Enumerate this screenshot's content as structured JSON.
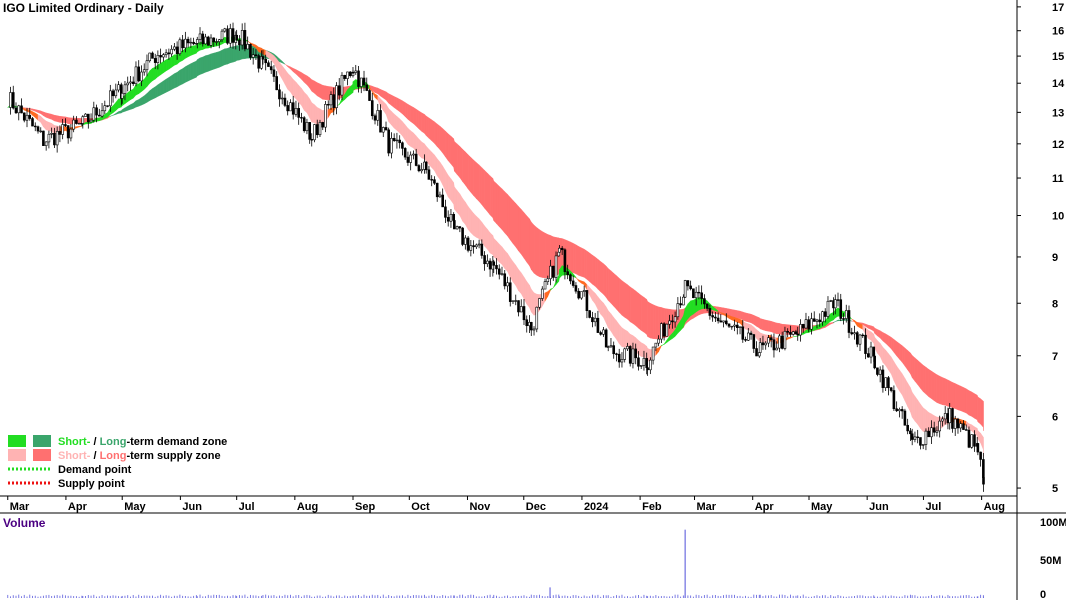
{
  "chart_data": {
    "type": "candlestick",
    "title": "IGO Limited Ordinary - Daily",
    "x_ticks": [
      "Mar",
      "Apr",
      "May",
      "Jun",
      "Jul",
      "Aug",
      "Sep",
      "Oct",
      "Nov",
      "Dec",
      "2024",
      "Feb",
      "Mar",
      "Apr",
      "May",
      "Jun",
      "Jul",
      "Aug"
    ],
    "y_ticks": [
      5,
      6,
      7,
      8,
      9,
      10,
      11,
      12,
      13,
      14,
      15,
      16,
      17
    ],
    "y_scale": "log",
    "ylim": [
      4.9,
      17.3
    ],
    "price_series_approx": [
      {
        "date": "2023-03",
        "close": 13.5
      },
      {
        "date": "2023-03-20",
        "close": 12.1
      },
      {
        "date": "2023-04-10",
        "close": 12.6
      },
      {
        "date": "2023-05-01",
        "close": 13.8
      },
      {
        "date": "2023-05-20",
        "close": 15.1
      },
      {
        "date": "2023-06-10",
        "close": 15.5
      },
      {
        "date": "2023-07-01",
        "close": 15.9
      },
      {
        "date": "2023-07-15",
        "close": 14.6
      },
      {
        "date": "2023-08-10",
        "close": 12.2
      },
      {
        "date": "2023-09-01",
        "close": 14.6
      },
      {
        "date": "2023-09-20",
        "close": 12.0
      },
      {
        "date": "2023-10-10",
        "close": 11.2
      },
      {
        "date": "2023-10-25",
        "close": 9.6
      },
      {
        "date": "2023-11-15",
        "close": 8.8
      },
      {
        "date": "2023-12-05",
        "close": 7.5
      },
      {
        "date": "2023-12-20",
        "close": 9.1
      },
      {
        "date": "2024-01-15",
        "close": 7.1
      },
      {
        "date": "2024-02-05",
        "close": 6.9
      },
      {
        "date": "2024-02-25",
        "close": 8.3
      },
      {
        "date": "2024-03-15",
        "close": 7.6
      },
      {
        "date": "2024-04-05",
        "close": 7.1
      },
      {
        "date": "2024-04-25",
        "close": 7.4
      },
      {
        "date": "2024-05-15",
        "close": 8.0
      },
      {
        "date": "2024-06-05",
        "close": 6.9
      },
      {
        "date": "2024-06-25",
        "close": 5.6
      },
      {
        "date": "2024-07-15",
        "close": 6.0
      },
      {
        "date": "2024-07-30",
        "close": 5.5
      },
      {
        "date": "2024-08-02",
        "close": 5.05
      }
    ],
    "short_term_zone_color": {
      "demand": "#22dd22",
      "supply": "#ffb3b3",
      "transition": "#ff6a22"
    },
    "long_term_zone_color": {
      "demand": "#3aa56b",
      "supply": "#ff7070"
    },
    "legend": {
      "placement": "bottom-left",
      "items": [
        {
          "parts": [
            {
              "text": "Short-",
              "color": "#22dd22"
            },
            {
              "text": " / ",
              "color": "#000000"
            },
            {
              "text": "Long",
              "color": "#3aa56b"
            },
            {
              "text": "-term demand zone",
              "color": "#000000"
            }
          ]
        },
        {
          "parts": [
            {
              "text": "Short-",
              "color": "#ffb3b3"
            },
            {
              "text": " / ",
              "color": "#000000"
            },
            {
              "text": "Long",
              "color": "#ff7070"
            },
            {
              "text": "-term supply zone",
              "color": "#000000"
            }
          ]
        },
        {
          "parts": [
            {
              "text": "Demand point",
              "color": "#000000"
            }
          ]
        },
        {
          "parts": [
            {
              "text": "Supply point",
              "color": "#000000"
            }
          ]
        }
      ]
    },
    "volume": {
      "title": "Volume",
      "y_ticks": [
        "100M",
        "50M",
        "0"
      ],
      "y_values": [
        100,
        50,
        0
      ],
      "spike_values_M": [
        {
          "date": "2024-02-25",
          "value": 90
        },
        {
          "date": "2023-12-15",
          "value": 14
        }
      ]
    }
  }
}
